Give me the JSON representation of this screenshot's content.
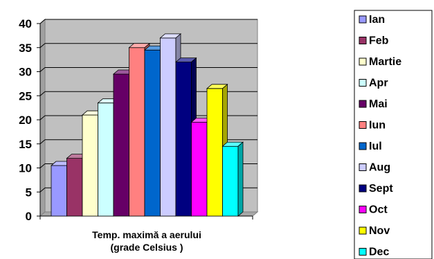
{
  "chart_data": {
    "type": "bar",
    "categories": [
      "Ian",
      "Feb",
      "Martie",
      "Apr",
      "Mai",
      "Iun",
      "Iul",
      "Aug",
      "Sept",
      "Oct",
      "Nov",
      "Dec"
    ],
    "values": [
      10.5,
      12,
      21,
      23.5,
      29.5,
      35,
      34.5,
      37,
      32,
      19.5,
      26.5,
      14.5
    ],
    "colors": [
      "#9999ff",
      "#993366",
      "#ffffcc",
      "#ccffff",
      "#660066",
      "#ff8080",
      "#0066cc",
      "#ccccff",
      "#000080",
      "#ff00ff",
      "#ffff00",
      "#00ffff"
    ],
    "xlabel_lines": [
      "Temp. maximă a aerului",
      "(grade Celsius )"
    ],
    "yticks": [
      "0",
      "5",
      "10",
      "15",
      "20",
      "25",
      "30",
      "35",
      "40"
    ],
    "ylim": [
      0,
      40
    ],
    "grid": true,
    "legend_position": "right"
  }
}
